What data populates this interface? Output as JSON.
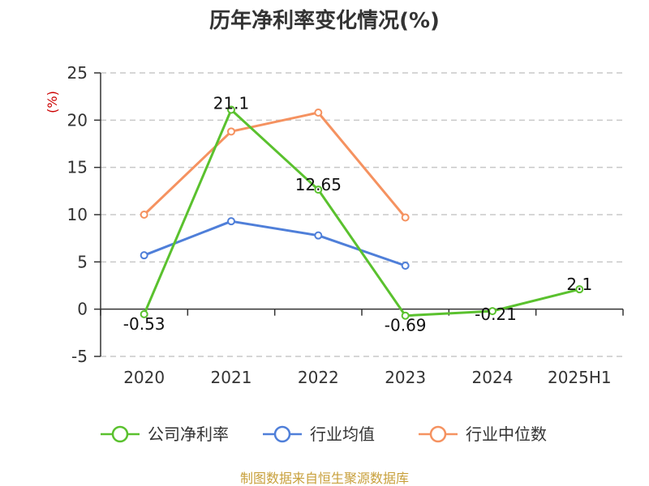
{
  "chart_data": {
    "type": "line",
    "title": "历年净利率变化情况(%)",
    "unit_label": "(%)",
    "categories": [
      "2020",
      "2021",
      "2022",
      "2023",
      "2024",
      "2025H1"
    ],
    "ylim": [
      -5,
      25
    ],
    "yticks": [
      -5,
      0,
      5,
      10,
      15,
      20,
      25
    ],
    "grid": true,
    "legend_position": "bottom",
    "series": [
      {
        "name": "公司净利率",
        "color": "#5ac12e",
        "values": [
          -0.53,
          21.1,
          12.65,
          -0.69,
          -0.21,
          2.1
        ],
        "labels": [
          "-0.53",
          "21.1",
          "12.65",
          "-0.69",
          "-0.21",
          "2.1"
        ]
      },
      {
        "name": "行业均值",
        "color": "#4f7fd9",
        "values": [
          5.7,
          9.3,
          7.8,
          4.6,
          null,
          null
        ]
      },
      {
        "name": "行业中位数",
        "color": "#f59260",
        "values": [
          10.0,
          18.8,
          20.8,
          9.7,
          null,
          null
        ]
      }
    ]
  },
  "footer": {
    "source": "制图数据来自恒生聚源数据库"
  }
}
